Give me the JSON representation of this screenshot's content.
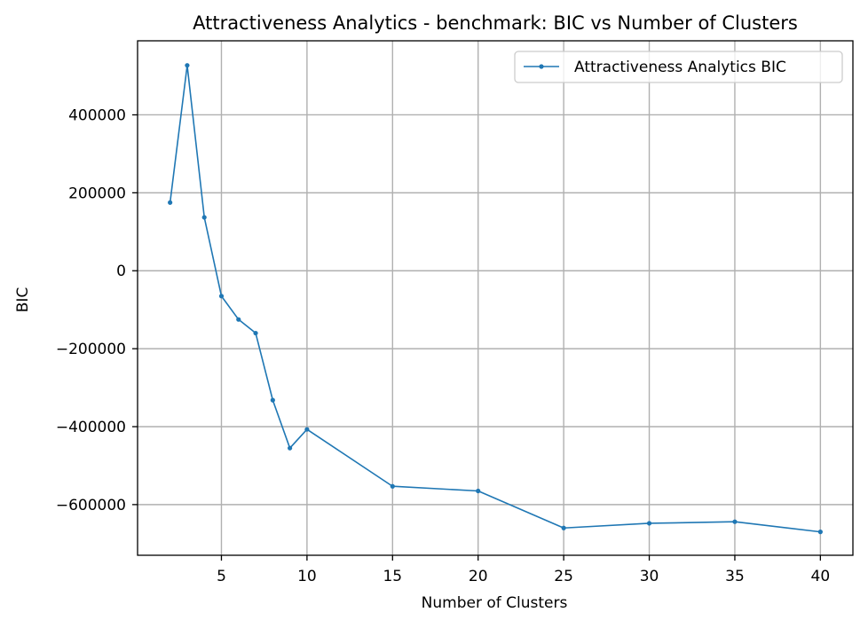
{
  "chart_data": {
    "type": "line",
    "title": "Attractiveness Analytics - benchmark: BIC vs Number of Clusters",
    "xlabel": "Number of Clusters",
    "ylabel": "BIC",
    "xlim": [
      0.1,
      41.9
    ],
    "ylim": [
      -730000,
      590000
    ],
    "xticks": [
      5,
      10,
      15,
      20,
      25,
      30,
      35,
      40
    ],
    "xtick_labels": [
      "5",
      "10",
      "15",
      "20",
      "25",
      "30",
      "35",
      "40"
    ],
    "yticks": [
      -600000,
      -400000,
      -200000,
      0,
      200000,
      400000
    ],
    "ytick_labels": [
      "−600000",
      "−400000",
      "−200000",
      "0",
      "200000",
      "400000"
    ],
    "grid": true,
    "legend_position": "upper right",
    "series": [
      {
        "name": "Attractiveness Analytics BIC",
        "color": "#1f77b4",
        "marker": "circle",
        "x": [
          2,
          3,
          4,
          5,
          6,
          7,
          8,
          9,
          10,
          15,
          20,
          25,
          30,
          35,
          40
        ],
        "y": [
          175000,
          527000,
          137000,
          -65000,
          -125000,
          -160000,
          -332000,
          -455000,
          -407000,
          -553000,
          -565000,
          -660000,
          -648000,
          -644000,
          -670000
        ]
      }
    ]
  }
}
